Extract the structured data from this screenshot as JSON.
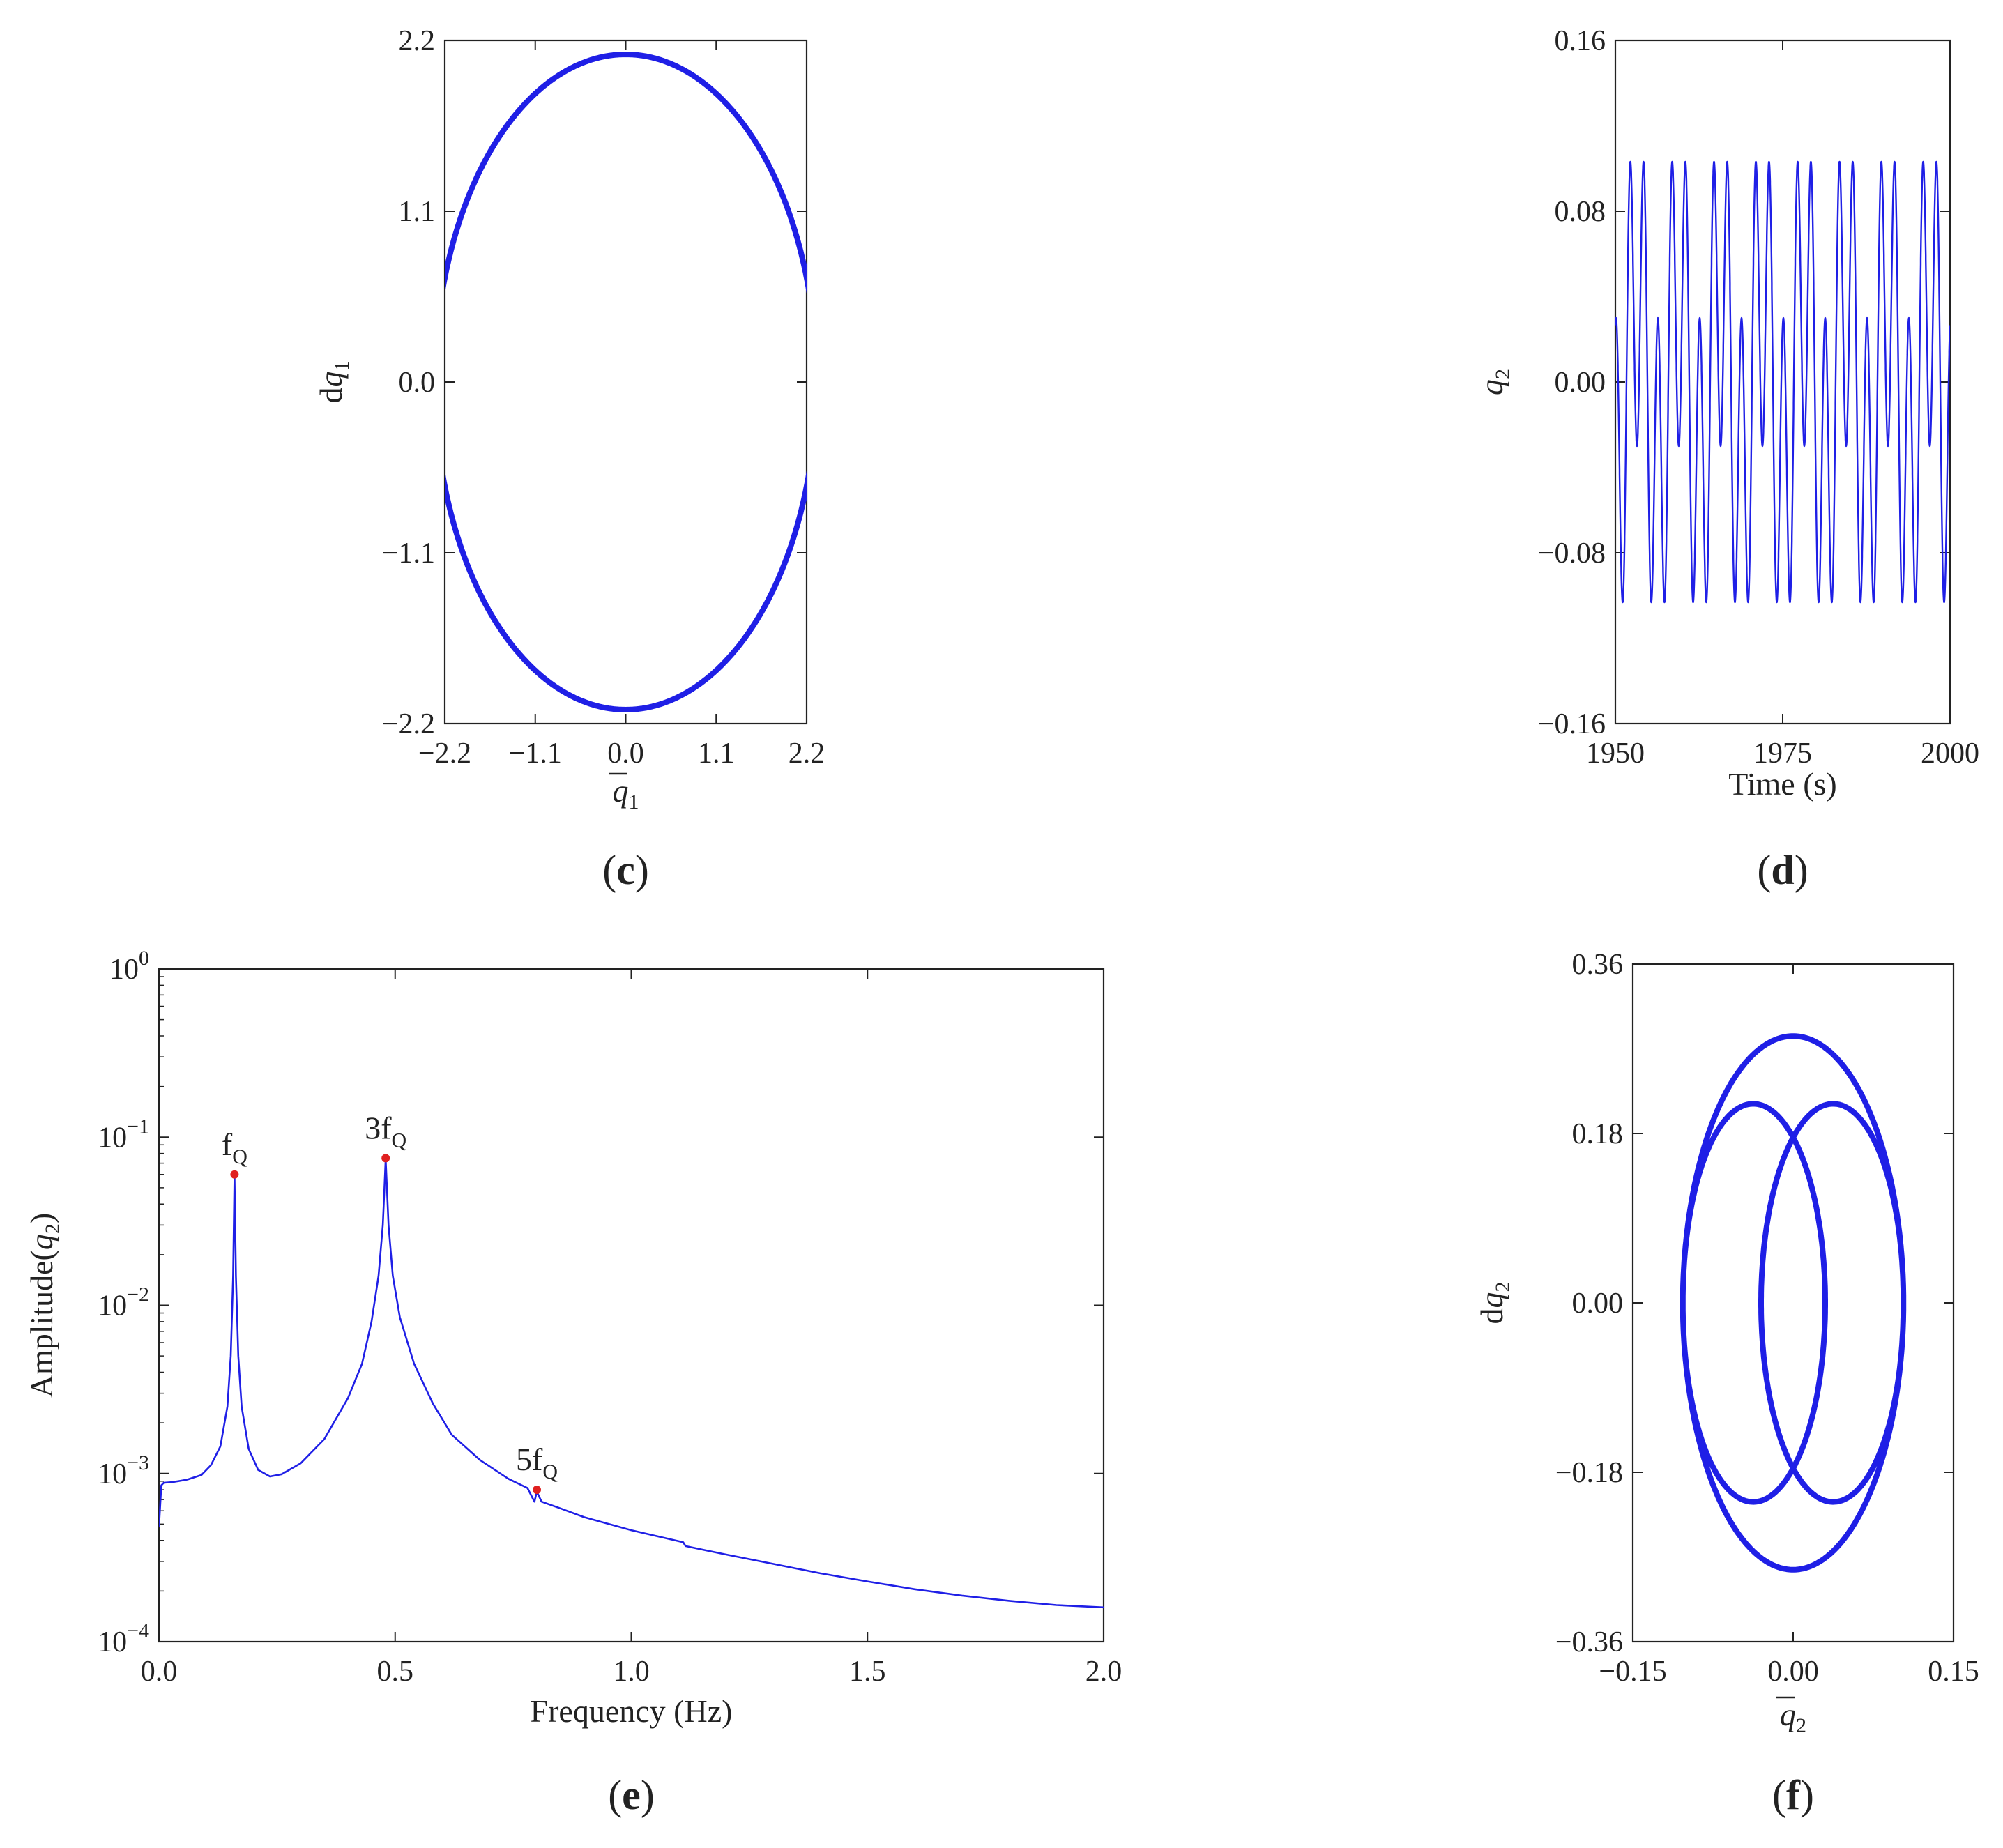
{
  "colors": {
    "curve": "#1f1fe6",
    "marker": "#e02020",
    "axis": "#222222"
  },
  "chart_data": [
    {
      "id": "c",
      "type": "line",
      "panel_label": "c",
      "title": "",
      "xlabel_symbol": "q",
      "xlabel_sub": "1",
      "ylabel_prefix": "d",
      "ylabel_symbol": "q",
      "ylabel_sub": "1",
      "xlim": [
        -2.2,
        2.2
      ],
      "ylim": [
        -2.2,
        2.2
      ],
      "xticks": [
        -2.2,
        -1.1,
        0.0,
        1.1,
        2.2
      ],
      "xtick_labels": [
        "−2.2",
        "−1.1",
        "0.0",
        "1.1",
        "2.2"
      ],
      "yticks": [
        -2.2,
        -1.1,
        0.0,
        1.1,
        2.2
      ],
      "ytick_labels": [
        "−2.2",
        "−1.1",
        "0.0",
        "1.1",
        "2.2"
      ],
      "series": [
        {
          "name": "phase-portrait-q1",
          "kind": "parametric",
          "x_amplitude": 2.32,
          "y_amplitude": 2.11,
          "x_harmonics": [
            1
          ],
          "y_harmonics": [
            1
          ]
        }
      ]
    },
    {
      "id": "d",
      "type": "line",
      "panel_label": "d",
      "title": "",
      "xlabel": "Time (s)",
      "ylabel_symbol": "q",
      "ylabel_sub": "2",
      "xlim": [
        1950,
        2000
      ],
      "ylim": [
        -0.16,
        0.16
      ],
      "xticks": [
        1950,
        1975,
        2000
      ],
      "xtick_labels": [
        "1950",
        "1975",
        "2000"
      ],
      "yticks": [
        -0.16,
        -0.08,
        0.0,
        0.08,
        0.16
      ],
      "ytick_labels": [
        "−0.16",
        "−0.08",
        "0.00",
        "0.08",
        "0.16"
      ],
      "series": [
        {
          "name": "time-history-q2",
          "kind": "time",
          "frequency_hz": 0.16,
          "a1": 0.048,
          "a3": 0.078,
          "phase": 4.61
        }
      ]
    },
    {
      "id": "e",
      "type": "line",
      "panel_label": "e",
      "title": "",
      "xlabel": "Frequency (Hz)",
      "ylabel_text": "Amplitude(",
      "ylabel_symbol": "q",
      "ylabel_sub": "2",
      "ylabel_close": ")",
      "yscale": "log",
      "xlim": [
        0.0,
        2.0
      ],
      "ylim": [
        0.0001,
        1
      ],
      "xticks": [
        0.0,
        0.5,
        1.0,
        1.5,
        2.0
      ],
      "xtick_labels": [
        "0.0",
        "0.5",
        "1.0",
        "1.5",
        "2.0"
      ],
      "yticks": [
        0.0001,
        0.001,
        0.01,
        0.1,
        1
      ],
      "ytick_bases": [
        "10",
        "10",
        "10",
        "10",
        "10"
      ],
      "ytick_exponents": [
        "−4",
        "−3",
        "−2",
        "−1",
        "0"
      ],
      "peaks": [
        {
          "label": "f",
          "label_sub": "Q",
          "x": 0.16,
          "y": 0.06
        },
        {
          "label": "3f",
          "label_sub": "Q",
          "x": 0.48,
          "y": 0.075
        },
        {
          "label": "5f",
          "label_sub": "Q",
          "x": 0.8,
          "y": 0.0008
        }
      ],
      "series": [
        {
          "name": "spectrum-q2",
          "points": [
            [
              0.0,
              0.00048
            ],
            [
              0.005,
              0.00085
            ],
            [
              0.01,
              0.00088
            ],
            [
              0.03,
              0.00089
            ],
            [
              0.06,
              0.00092
            ],
            [
              0.09,
              0.00098
            ],
            [
              0.11,
              0.00112
            ],
            [
              0.13,
              0.00145
            ],
            [
              0.145,
              0.0025
            ],
            [
              0.152,
              0.005
            ],
            [
              0.157,
              0.015
            ],
            [
              0.16,
              0.058
            ],
            [
              0.163,
              0.015
            ],
            [
              0.168,
              0.005
            ],
            [
              0.175,
              0.0025
            ],
            [
              0.19,
              0.0014
            ],
            [
              0.21,
              0.00105
            ],
            [
              0.235,
              0.00096
            ],
            [
              0.26,
              0.00099
            ],
            [
              0.3,
              0.00115
            ],
            [
              0.35,
              0.0016
            ],
            [
              0.4,
              0.0028
            ],
            [
              0.43,
              0.0045
            ],
            [
              0.45,
              0.008
            ],
            [
              0.465,
              0.015
            ],
            [
              0.474,
              0.03
            ],
            [
              0.48,
              0.074
            ],
            [
              0.486,
              0.03
            ],
            [
              0.495,
              0.015
            ],
            [
              0.51,
              0.0085
            ],
            [
              0.54,
              0.0045
            ],
            [
              0.58,
              0.0026
            ],
            [
              0.62,
              0.0017
            ],
            [
              0.68,
              0.0012
            ],
            [
              0.74,
              0.00093
            ],
            [
              0.78,
              0.00082
            ],
            [
              0.795,
              0.00068
            ],
            [
              0.8,
              0.00078
            ],
            [
              0.81,
              0.00068
            ],
            [
              0.85,
              0.00062
            ],
            [
              0.9,
              0.00055
            ],
            [
              1.0,
              0.00046
            ],
            [
              1.11,
              0.00039
            ],
            [
              1.115,
              0.00037
            ],
            [
              1.2,
              0.00033
            ],
            [
              1.3,
              0.00029
            ],
            [
              1.4,
              0.000255
            ],
            [
              1.5,
              0.000228
            ],
            [
              1.6,
              0.000205
            ],
            [
              1.7,
              0.000188
            ],
            [
              1.8,
              0.000175
            ],
            [
              1.9,
              0.000165
            ],
            [
              2.0,
              0.00016
            ]
          ]
        }
      ]
    },
    {
      "id": "f",
      "type": "line",
      "panel_label": "f",
      "title": "",
      "xlabel_symbol": "q",
      "xlabel_sub": "2",
      "ylabel_prefix": "d",
      "ylabel_symbol": "q",
      "ylabel_sub": "2",
      "xlim": [
        -0.15,
        0.15
      ],
      "ylim": [
        -0.36,
        0.36
      ],
      "xticks": [
        -0.15,
        0.0,
        0.15
      ],
      "xtick_labels": [
        "−0.15",
        "0.00",
        "0.15"
      ],
      "yticks": [
        -0.36,
        -0.18,
        0.0,
        0.18,
        0.36
      ],
      "ytick_labels": [
        "−0.36",
        "−0.18",
        "0.00",
        "0.18",
        "0.36"
      ],
      "series": [
        {
          "name": "phase-portrait-q2",
          "kind": "harmonic",
          "frequency_hz": 0.16,
          "a1": 0.048,
          "a3": 0.078
        }
      ]
    }
  ]
}
